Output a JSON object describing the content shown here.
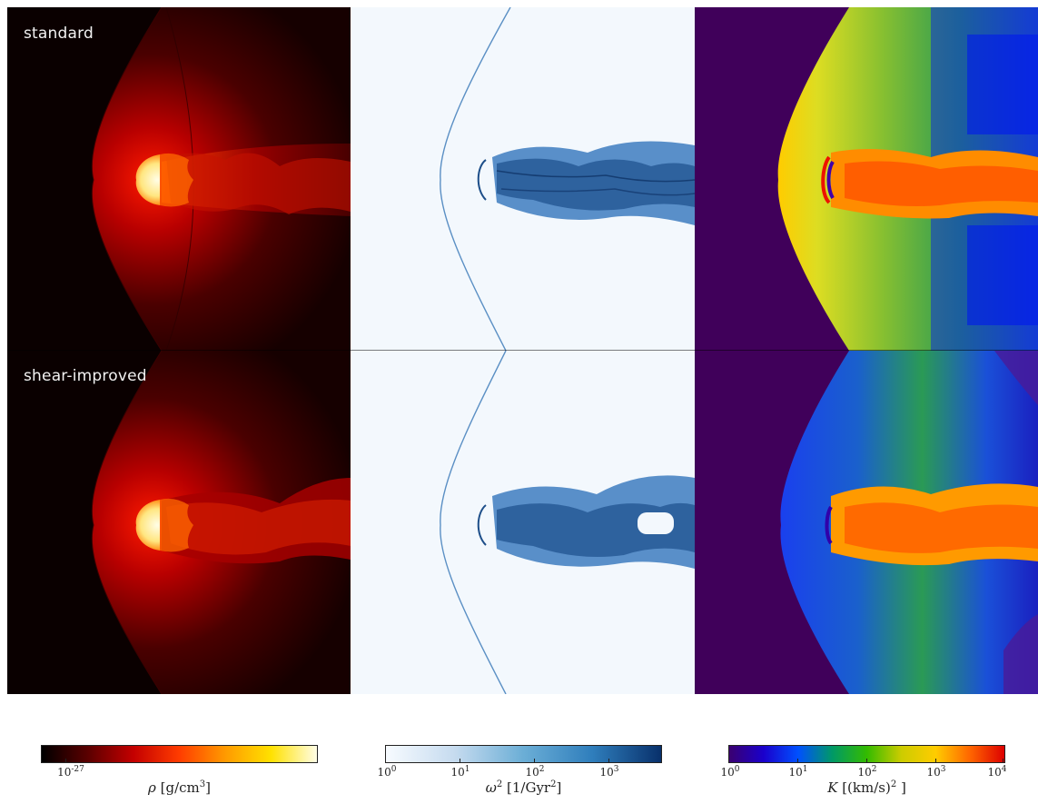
{
  "rows": [
    {
      "label": "standard"
    },
    {
      "label": "shear-improved"
    }
  ],
  "colorbars": [
    {
      "name": "density",
      "gradient": [
        "#000000",
        "#5a0000",
        "#c40000",
        "#ff3c00",
        "#ff9a00",
        "#ffe100",
        "#fffde6"
      ],
      "ticks": [
        {
          "base": "10",
          "exp": "-27",
          "frac": 0.09
        }
      ],
      "label_symbol": "ρ",
      "label_unit_pre": "[g/cm",
      "label_unit_exp": "3",
      "label_unit_post": "]"
    },
    {
      "name": "vorticity-squared",
      "gradient": [
        "#f7fbff",
        "#c6dbef",
        "#6baed6",
        "#2f7ebc",
        "#08306b"
      ],
      "ticks": [
        {
          "base": "10",
          "exp": "0",
          "frac": 0.0
        },
        {
          "base": "10",
          "exp": "1",
          "frac": 0.27
        },
        {
          "base": "10",
          "exp": "2",
          "frac": 0.54
        },
        {
          "base": "10",
          "exp": "3",
          "frac": 0.81
        }
      ],
      "label_symbol": "ω",
      "label_symbol_exp": "2",
      "label_unit_pre": "[1/Gyr",
      "label_unit_exp": "2",
      "label_unit_post": "]"
    },
    {
      "name": "turbulent-energy",
      "gradient": [
        "#3a0070",
        "#1a00cc",
        "#0050ff",
        "#009966",
        "#33bb00",
        "#cccc00",
        "#ffcc00",
        "#ff6600",
        "#dd0000"
      ],
      "ticks": [
        {
          "base": "10",
          "exp": "0",
          "frac": 0.0
        },
        {
          "base": "10",
          "exp": "1",
          "frac": 0.25
        },
        {
          "base": "10",
          "exp": "2",
          "frac": 0.5
        },
        {
          "base": "10",
          "exp": "3",
          "frac": 0.75
        },
        {
          "base": "10",
          "exp": "4",
          "frac": 1.0
        }
      ],
      "label_symbol": "K",
      "label_unit_pre": "[(km/s)",
      "label_unit_exp": "2",
      "label_unit_post": " ]"
    }
  ]
}
